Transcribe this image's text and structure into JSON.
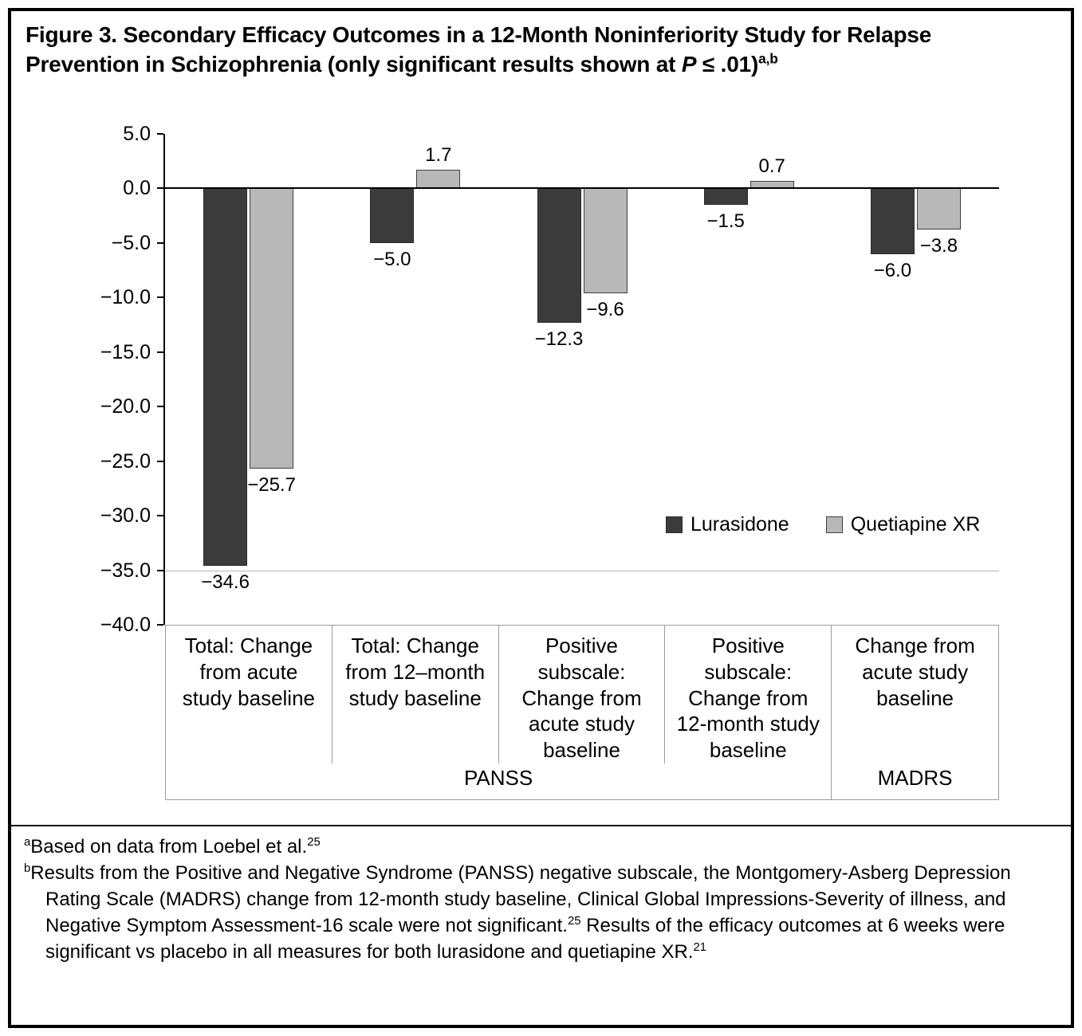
{
  "figure": {
    "title": {
      "line1": "Figure 3. Secondary Efficacy Outcomes in a 12-Month Noninferiority Study for Relapse",
      "line2_pre": "Prevention in Schizophrenia (only significant results shown at ",
      "line2_italic": "P",
      "line2_post": " ≤ .01)",
      "line2_sup": "a,b"
    },
    "footnotes": {
      "a_marker": "a",
      "a_text": "Based on data from Loebel et al.",
      "a_ref": "25",
      "b_marker": "b",
      "b_text1": "Results from the Positive and Negative Syndrome (PANSS) negative subscale, the Montgomery-Asberg Depression Rating Scale (MADRS) change from 12-month study baseline, Clinical Global Impressions-Severity of illness, and Negative Symptom Assessment-16 scale were not significant.",
      "b_ref1": "25",
      "b_text2": " Results of the efficacy outcomes at 6 weeks were significant vs placebo in all measures for both lurasidone and quetiapine XR.",
      "b_ref2": "21"
    }
  },
  "chart_data": {
    "type": "bar",
    "title": "",
    "xlabel": "",
    "ylabel": "",
    "ylim": [
      -40,
      5
    ],
    "yticks": [
      5,
      0,
      -5,
      -10,
      -15,
      -20,
      -25,
      -30,
      -35,
      -40
    ],
    "ytick_labels": [
      "5.0",
      "0.0",
      "−5.0",
      "−10.0",
      "−15.0",
      "−20.0",
      "−25.0",
      "−30.0",
      "−35.0",
      "−40.0"
    ],
    "gridline_values": [
      -35
    ],
    "categories": [
      "Total: Change\nfrom acute\nstudy baseline",
      "Total: Change\nfrom 12–month\nstudy baseline",
      "Positive\nsubscale:\nChange from\nacute study\nbaseline",
      "Positive\nsubscale:\nChange from\n12-month study\nbaseline",
      "Change from\nacute study\nbaseline"
    ],
    "series": [
      {
        "name": "Lurasidone",
        "color": "#3b3b3b",
        "border": "#2a2a2a",
        "values": [
          -34.6,
          -5.0,
          -12.3,
          -1.5,
          -6.0
        ]
      },
      {
        "name": "Quetiapine XR",
        "color": "#b8b8b8",
        "border": "#3f3f3f",
        "values": [
          -25.7,
          1.7,
          -9.6,
          0.7,
          -3.8
        ]
      }
    ],
    "value_labels": [
      [
        "−34.6",
        "−5.0",
        "−12.3",
        "−1.5",
        "−6.0"
      ],
      [
        "−25.7",
        "1.7",
        "−9.6",
        "0.7",
        "−3.8"
      ]
    ],
    "group_labels": [
      {
        "label": "PANSS",
        "span": 4
      },
      {
        "label": "MADRS",
        "span": 1
      }
    ],
    "legend": {
      "position": "inside-right",
      "entries": [
        "Lurasidone",
        "Quetiapine XR"
      ]
    }
  }
}
